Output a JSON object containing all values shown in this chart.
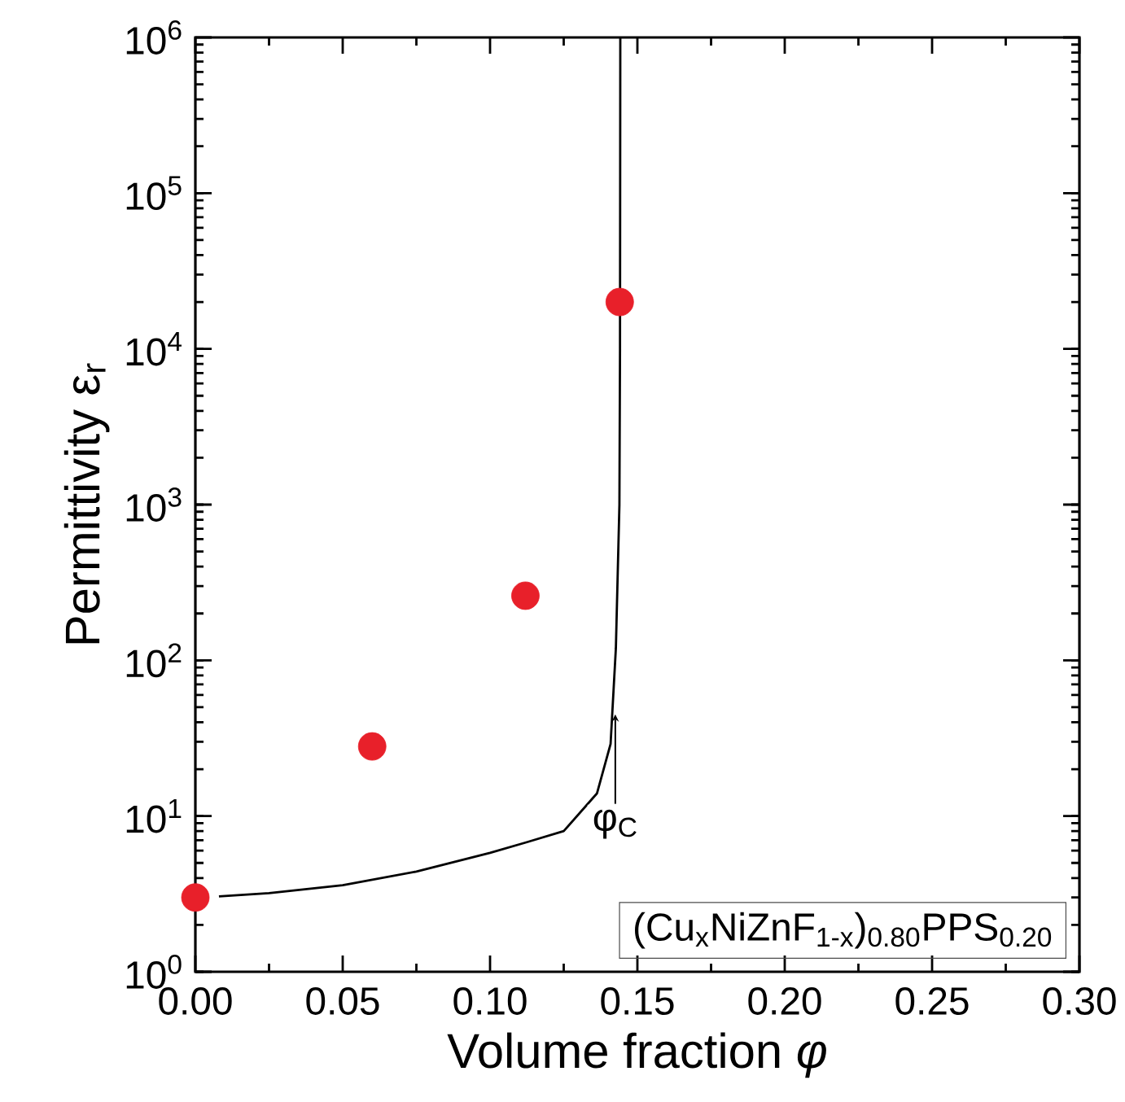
{
  "chart_data": {
    "type": "line",
    "xlabel": "Volume fraction *φ*",
    "ylabel": "Permittivity ε$_{r}$",
    "xlim": [
      0,
      0.3
    ],
    "ylim": [
      1,
      1000000
    ],
    "log": "y",
    "grid": false,
    "xticks": [
      {
        "value": 0,
        "label": "0.00"
      },
      {
        "value": 0.05,
        "label": "0.05"
      },
      {
        "value": 0.1,
        "label": "0.10"
      },
      {
        "value": 0.15,
        "label": "0.15"
      },
      {
        "value": 0.2,
        "label": "0.20"
      },
      {
        "value": 0.25,
        "label": "0.25"
      },
      {
        "value": 0.3,
        "label": "0.30"
      }
    ],
    "yticks": [
      {
        "value": 1,
        "label": "10$^{0}$"
      },
      {
        "value": 10,
        "label": "10$^{1}$"
      },
      {
        "value": 100,
        "label": "10$^{2}$"
      },
      {
        "value": 1000,
        "label": "10$^{3}$"
      },
      {
        "value": 10000,
        "label": "10$^{4}$"
      },
      {
        "value": 100000,
        "label": "10$^{5}$"
      },
      {
        "value": 1000000,
        "label": "10$^{6}$"
      }
    ],
    "series": [
      {
        "color": "#000000",
        "marker": "none",
        "x": [
          0.008,
          0.025,
          0.05,
          0.075,
          0.1,
          0.1125,
          0.125,
          0.1363,
          0.1409,
          0.1427,
          0.1439,
          0.1441,
          0.1442
        ],
        "values": [
          3.05,
          3.2,
          3.6,
          4.4,
          5.8,
          6.8,
          8,
          14,
          29,
          120,
          1000,
          10000,
          1000000
        ]
      },
      {
        "type": "scatter",
        "color": "#e8202a",
        "marker": "circle",
        "x": [
          0,
          0.06,
          0.112,
          0.144
        ],
        "values": [
          3,
          28,
          260,
          20000
        ]
      }
    ],
    "annotations": [
      {
        "text": "φ$_{C}$",
        "x": 0.1425,
        "y": 45
      },
      "(Cu$_{x}$NiZnF$_{1-x}$)$_{0.80}$PPS$_{0.20}$"
    ]
  }
}
